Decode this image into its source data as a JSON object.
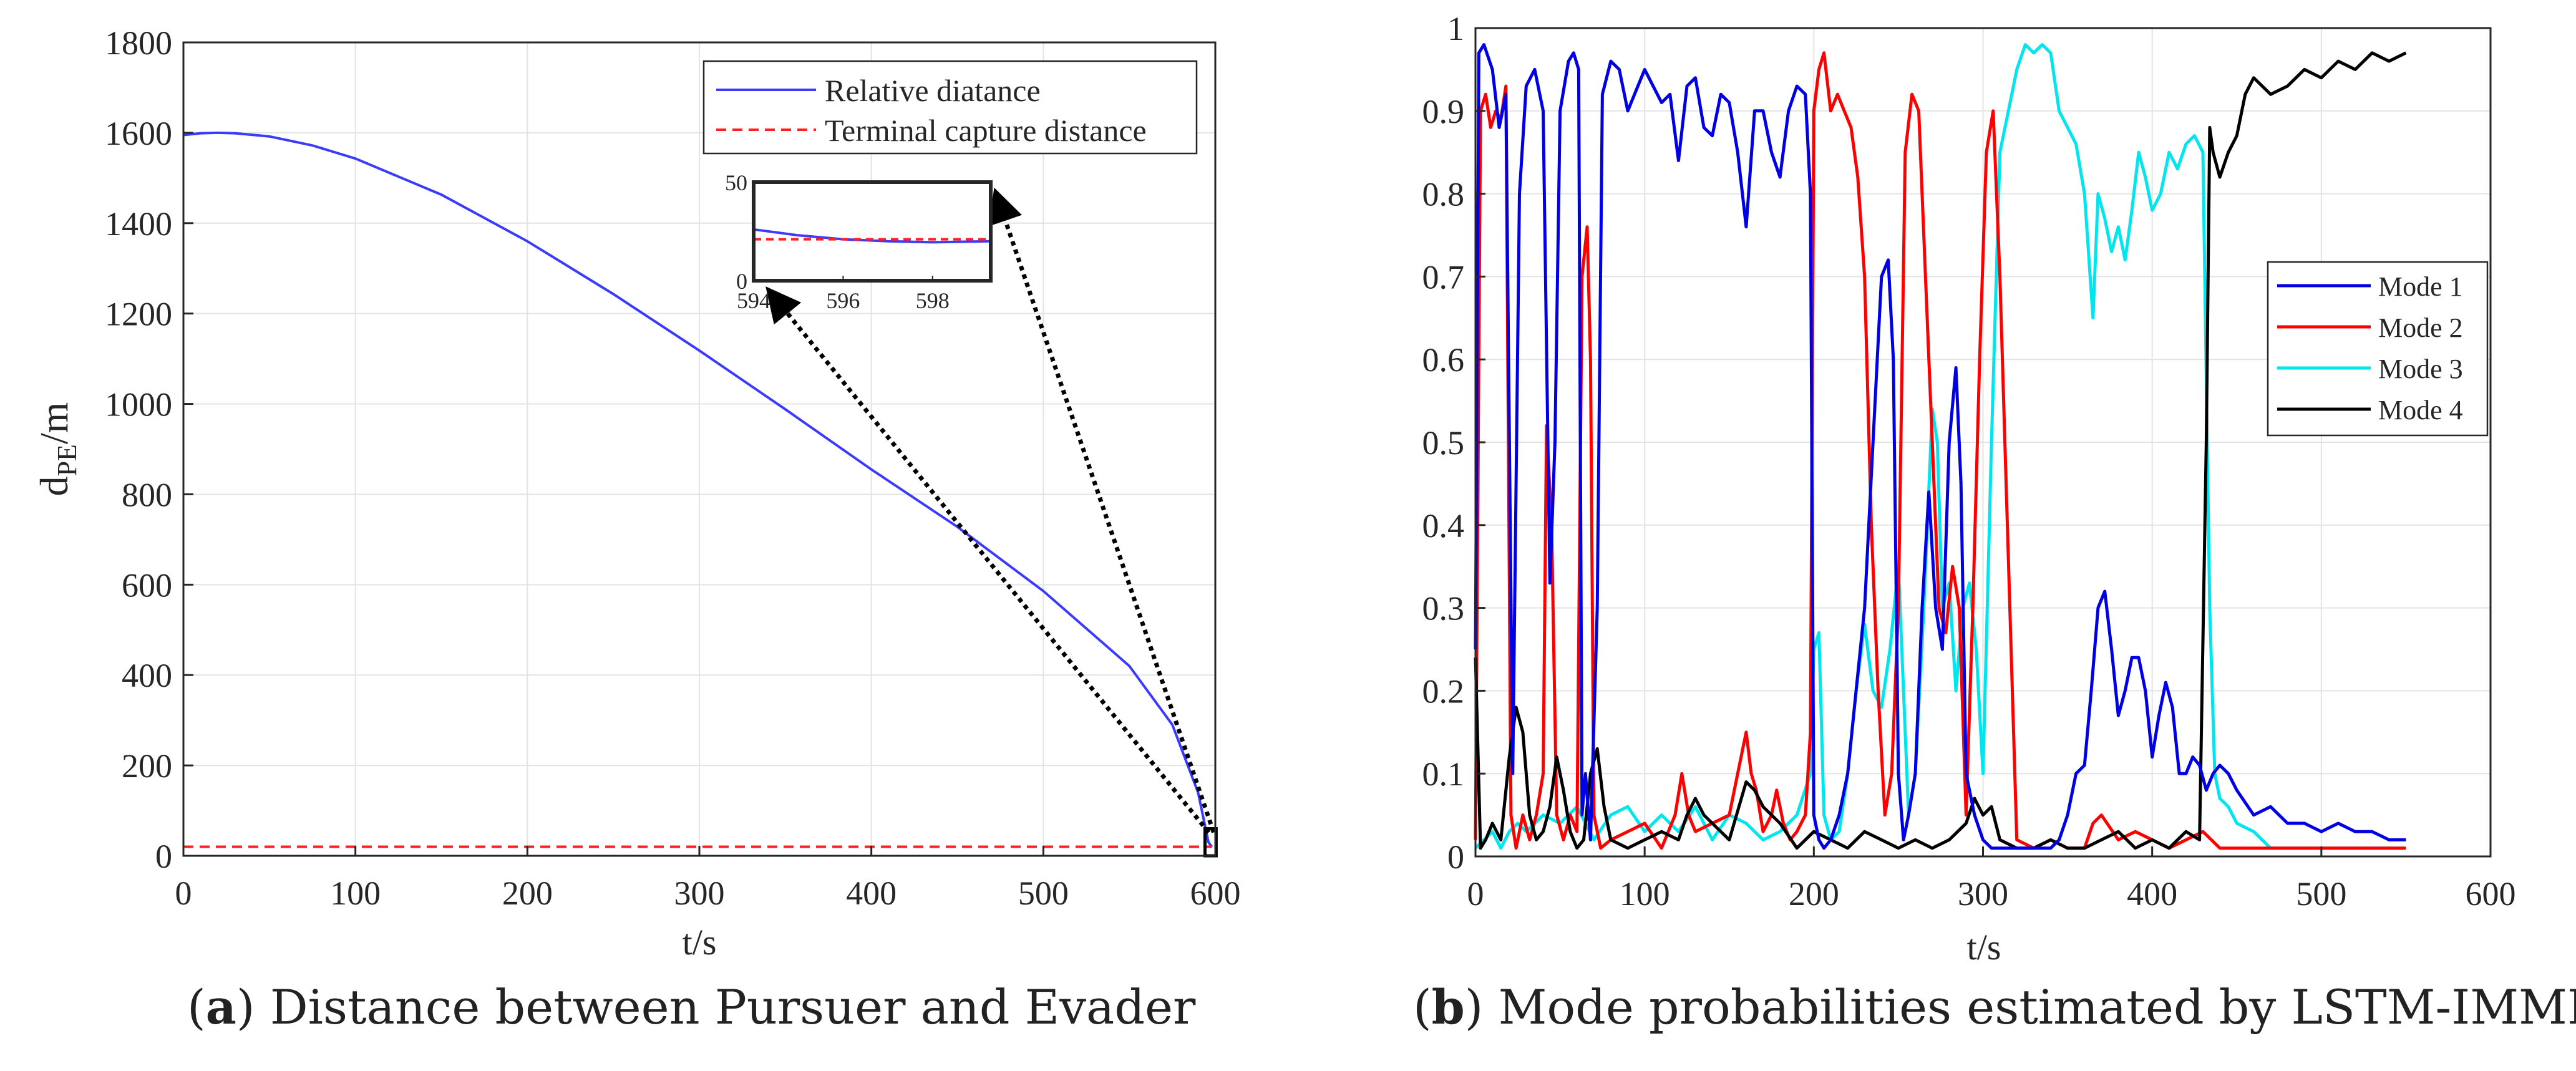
{
  "figure": {
    "caption_a": {
      "tag": "a",
      "text": "Distance between Pursuer and Evader"
    },
    "caption_b": {
      "tag": "b",
      "text": "Mode probabilities estimated by LSTM-IMML"
    }
  },
  "chart_data": [
    {
      "id": "a",
      "type": "line",
      "xlabel": "t/s",
      "ylabel": "d",
      "ylabel_sub": "PE",
      "ylabel_unit": "/m",
      "xlim": [
        0,
        600
      ],
      "ylim": [
        0,
        1800
      ],
      "xticks": [
        0,
        100,
        200,
        300,
        400,
        500,
        600
      ],
      "yticks": [
        0,
        200,
        400,
        600,
        800,
        1000,
        1200,
        1400,
        1600,
        1800
      ],
      "grid": true,
      "legend_position": "top-right",
      "series": [
        {
          "name": "Relative diatance",
          "color": "#3b3bff",
          "style": "solid",
          "x": [
            0,
            10,
            20,
            30,
            50,
            75,
            100,
            150,
            200,
            250,
            300,
            350,
            400,
            450,
            500,
            550,
            575,
            590,
            596,
            598
          ],
          "y": [
            1595,
            1599,
            1600,
            1599,
            1592,
            1572,
            1543,
            1463,
            1360,
            1243,
            1118,
            988,
            855,
            728,
            586,
            420,
            290,
            140,
            30,
            20
          ]
        },
        {
          "name": "Terminal capture distance",
          "color": "#ff2020",
          "style": "dashed",
          "x": [
            0,
            598
          ],
          "y": [
            20,
            20
          ]
        }
      ],
      "inset": {
        "xlim": [
          594,
          599.3
        ],
        "ylim": [
          0,
          50
        ],
        "xticks": [
          594,
          596,
          598
        ],
        "xticklabels": [
          "594",
          "596",
          "598"
        ],
        "yticks": [
          0,
          50
        ],
        "series": [
          {
            "name": "Relative diatance",
            "x": [
              594,
              595,
              596,
              597,
              598,
              599.3
            ],
            "y": [
              26,
              23,
              21,
              20,
              19.5,
              20
            ]
          },
          {
            "name": "Terminal capture distance",
            "x": [
              594,
              599.3
            ],
            "y": [
              21,
              21
            ]
          }
        ]
      }
    },
    {
      "id": "b",
      "type": "line",
      "xlabel": "t/s",
      "ylabel": "",
      "xlim": [
        0,
        600
      ],
      "ylim": [
        0,
        1
      ],
      "xticks": [
        0,
        100,
        200,
        300,
        400,
        500,
        600
      ],
      "yticks": [
        0,
        0.1,
        0.2,
        0.3,
        0.4,
        0.5,
        0.6,
        0.7,
        0.8,
        0.9,
        1
      ],
      "yticklabels": [
        "0",
        "0.1",
        "0.2",
        "0.3",
        "0.4",
        "0.5",
        "0.6",
        "0.7",
        "0.8",
        "0.9",
        "1"
      ],
      "grid": true,
      "legend_position": "right",
      "series": [
        {
          "name": "Mode 1",
          "color": "#0000e6",
          "x": [
            0,
            2,
            5,
            10,
            14,
            18,
            22,
            26,
            30,
            35,
            40,
            44,
            47,
            50,
            55,
            58,
            61,
            63,
            65,
            68,
            72,
            75,
            80,
            85,
            90,
            100,
            110,
            115,
            120,
            125,
            130,
            135,
            140,
            145,
            150,
            155,
            160,
            165,
            170,
            175,
            180,
            185,
            190,
            195,
            198,
            200,
            203,
            206,
            210,
            215,
            220,
            225,
            230,
            235,
            240,
            244,
            247,
            250,
            253,
            256,
            260,
            264,
            268,
            272,
            276,
            280,
            284,
            287,
            290,
            295,
            300,
            305,
            310,
            320,
            330,
            340,
            345,
            350,
            355,
            360,
            364,
            368,
            372,
            376,
            380,
            384,
            388,
            392,
            396,
            400,
            404,
            408,
            412,
            416,
            420,
            424,
            428,
            432,
            436,
            440,
            445,
            450,
            460,
            470,
            480,
            490,
            500,
            510,
            520,
            530,
            540,
            550
          ],
          "y": [
            0.25,
            0.97,
            0.98,
            0.95,
            0.88,
            0.92,
            0.1,
            0.8,
            0.93,
            0.95,
            0.9,
            0.33,
            0.5,
            0.9,
            0.96,
            0.97,
            0.95,
            0.05,
            0.1,
            0.02,
            0.3,
            0.92,
            0.96,
            0.95,
            0.9,
            0.95,
            0.91,
            0.92,
            0.84,
            0.93,
            0.94,
            0.88,
            0.87,
            0.92,
            0.91,
            0.85,
            0.76,
            0.9,
            0.9,
            0.85,
            0.82,
            0.9,
            0.93,
            0.92,
            0.8,
            0.05,
            0.02,
            0.01,
            0.02,
            0.05,
            0.1,
            0.2,
            0.3,
            0.5,
            0.7,
            0.72,
            0.6,
            0.1,
            0.02,
            0.05,
            0.1,
            0.3,
            0.44,
            0.3,
            0.25,
            0.5,
            0.59,
            0.45,
            0.1,
            0.05,
            0.02,
            0.01,
            0.01,
            0.01,
            0.01,
            0.01,
            0.02,
            0.05,
            0.1,
            0.11,
            0.2,
            0.3,
            0.32,
            0.25,
            0.17,
            0.2,
            0.24,
            0.24,
            0.2,
            0.12,
            0.17,
            0.21,
            0.18,
            0.1,
            0.1,
            0.12,
            0.11,
            0.08,
            0.1,
            0.11,
            0.1,
            0.08,
            0.05,
            0.06,
            0.04,
            0.04,
            0.03,
            0.04,
            0.03,
            0.03,
            0.02,
            0.02
          ]
        },
        {
          "name": "Mode 2",
          "color": "#ff0000",
          "x": [
            0,
            3,
            6,
            9,
            12,
            15,
            18,
            21,
            24,
            28,
            32,
            36,
            40,
            42,
            45,
            48,
            52,
            56,
            60,
            63,
            66,
            68,
            70,
            74,
            80,
            90,
            100,
            110,
            118,
            122,
            126,
            130,
            140,
            150,
            155,
            160,
            163,
            166,
            170,
            175,
            178,
            182,
            186,
            190,
            195,
            198,
            200,
            203,
            206,
            210,
            214,
            218,
            222,
            226,
            230,
            234,
            238,
            242,
            246,
            250,
            254,
            258,
            262,
            266,
            270,
            274,
            278,
            282,
            286,
            290,
            294,
            298,
            302,
            306,
            310,
            320,
            330,
            340,
            350,
            360,
            365,
            370,
            380,
            390,
            400,
            410,
            420,
            430,
            440,
            450,
            460,
            480,
            500,
            520,
            550
          ],
          "y": [
            0.02,
            0.9,
            0.92,
            0.88,
            0.9,
            0.89,
            0.93,
            0.05,
            0.01,
            0.05,
            0.02,
            0.05,
            0.1,
            0.52,
            0.4,
            0.05,
            0.02,
            0.05,
            0.03,
            0.7,
            0.76,
            0.6,
            0.05,
            0.01,
            0.02,
            0.03,
            0.04,
            0.01,
            0.05,
            0.1,
            0.05,
            0.03,
            0.04,
            0.05,
            0.1,
            0.15,
            0.1,
            0.08,
            0.03,
            0.05,
            0.08,
            0.04,
            0.02,
            0.03,
            0.05,
            0.15,
            0.9,
            0.95,
            0.97,
            0.9,
            0.92,
            0.9,
            0.88,
            0.82,
            0.7,
            0.4,
            0.2,
            0.05,
            0.1,
            0.3,
            0.85,
            0.92,
            0.9,
            0.7,
            0.5,
            0.3,
            0.27,
            0.35,
            0.3,
            0.05,
            0.3,
            0.6,
            0.85,
            0.9,
            0.7,
            0.02,
            0.01,
            0.02,
            0.01,
            0.01,
            0.04,
            0.05,
            0.02,
            0.03,
            0.02,
            0.01,
            0.02,
            0.03,
            0.01,
            0.01,
            0.01,
            0.01,
            0.01,
            0.01,
            0.01
          ]
        },
        {
          "name": "Mode 3",
          "color": "#00e5ee",
          "x": [
            0,
            5,
            10,
            15,
            20,
            25,
            30,
            40,
            50,
            60,
            70,
            80,
            90,
            100,
            110,
            120,
            130,
            140,
            150,
            160,
            170,
            180,
            190,
            198,
            200,
            203,
            206,
            210,
            215,
            220,
            225,
            230,
            235,
            240,
            245,
            250,
            253,
            256,
            260,
            265,
            270,
            273,
            276,
            280,
            284,
            288,
            292,
            296,
            300,
            305,
            310,
            315,
            320,
            325,
            330,
            335,
            340,
            345,
            350,
            355,
            360,
            365,
            368,
            372,
            376,
            380,
            384,
            388,
            392,
            396,
            400,
            405,
            410,
            415,
            420,
            425,
            430,
            434,
            437,
            440,
            445,
            450,
            460,
            470,
            480,
            500,
            520,
            550
          ],
          "y": [
            0.01,
            0.02,
            0.03,
            0.01,
            0.03,
            0.04,
            0.03,
            0.05,
            0.04,
            0.06,
            0.02,
            0.05,
            0.06,
            0.03,
            0.05,
            0.03,
            0.06,
            0.02,
            0.05,
            0.04,
            0.02,
            0.03,
            0.05,
            0.1,
            0.25,
            0.27,
            0.05,
            0.02,
            0.03,
            0.1,
            0.2,
            0.28,
            0.2,
            0.18,
            0.25,
            0.35,
            0.2,
            0.05,
            0.1,
            0.3,
            0.54,
            0.5,
            0.3,
            0.33,
            0.2,
            0.3,
            0.33,
            0.25,
            0.1,
            0.5,
            0.85,
            0.9,
            0.95,
            0.98,
            0.97,
            0.98,
            0.97,
            0.9,
            0.88,
            0.86,
            0.8,
            0.65,
            0.8,
            0.77,
            0.73,
            0.76,
            0.72,
            0.78,
            0.85,
            0.82,
            0.78,
            0.8,
            0.85,
            0.83,
            0.86,
            0.87,
            0.85,
            0.3,
            0.1,
            0.07,
            0.06,
            0.04,
            0.03,
            0.01,
            0.01,
            0.01,
            0.01,
            0.01
          ]
        },
        {
          "name": "Mode 4",
          "color": "#000000",
          "x": [
            0,
            3,
            6,
            10,
            15,
            20,
            24,
            28,
            32,
            36,
            40,
            44,
            48,
            52,
            56,
            60,
            64,
            68,
            72,
            76,
            80,
            90,
            100,
            110,
            120,
            125,
            130,
            135,
            140,
            150,
            160,
            165,
            170,
            180,
            190,
            200,
            210,
            220,
            230,
            240,
            250,
            260,
            270,
            280,
            290,
            295,
            300,
            305,
            310,
            320,
            330,
            340,
            350,
            360,
            370,
            380,
            390,
            400,
            410,
            420,
            428,
            432,
            434,
            436,
            440,
            445,
            450,
            455,
            460,
            470,
            480,
            490,
            500,
            510,
            520,
            530,
            540,
            550
          ],
          "y": [
            0.24,
            0.01,
            0.02,
            0.04,
            0.02,
            0.12,
            0.18,
            0.15,
            0.05,
            0.02,
            0.03,
            0.06,
            0.12,
            0.08,
            0.03,
            0.01,
            0.02,
            0.1,
            0.13,
            0.06,
            0.02,
            0.01,
            0.02,
            0.03,
            0.02,
            0.05,
            0.07,
            0.05,
            0.04,
            0.02,
            0.09,
            0.08,
            0.06,
            0.04,
            0.01,
            0.03,
            0.02,
            0.01,
            0.03,
            0.02,
            0.01,
            0.02,
            0.01,
            0.02,
            0.04,
            0.07,
            0.05,
            0.06,
            0.02,
            0.01,
            0.01,
            0.02,
            0.01,
            0.01,
            0.02,
            0.03,
            0.01,
            0.02,
            0.01,
            0.03,
            0.02,
            0.5,
            0.88,
            0.85,
            0.82,
            0.85,
            0.87,
            0.92,
            0.94,
            0.92,
            0.93,
            0.95,
            0.94,
            0.96,
            0.95,
            0.97,
            0.96,
            0.97
          ]
        }
      ]
    }
  ]
}
